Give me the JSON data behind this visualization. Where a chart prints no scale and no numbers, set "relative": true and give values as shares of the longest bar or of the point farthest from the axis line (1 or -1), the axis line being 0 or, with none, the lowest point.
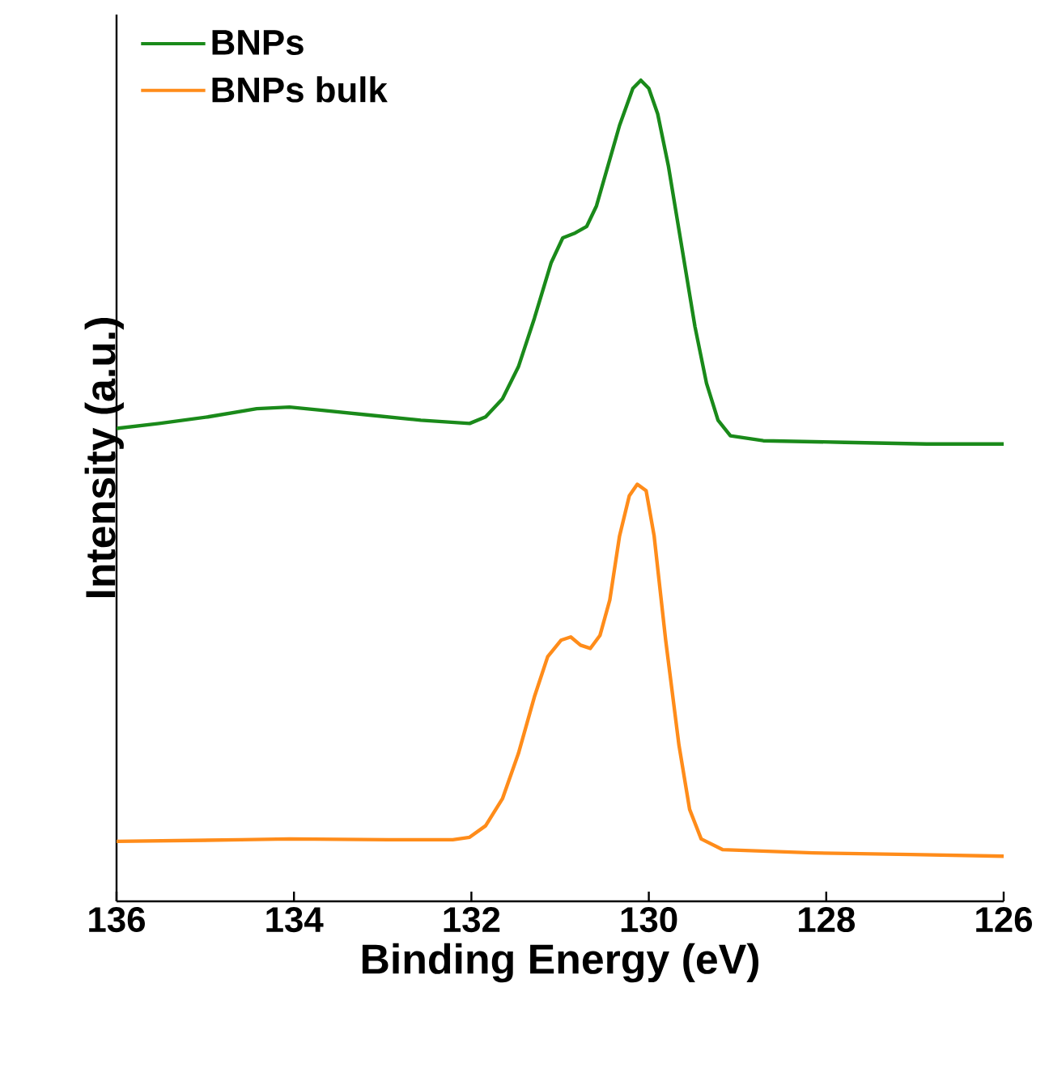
{
  "chart_data": {
    "type": "line",
    "xlabel": "Binding Energy (eV)",
    "ylabel": "Intensity (a.u.)",
    "relative": true,
    "xlim": [
      136,
      126
    ],
    "xticks": [
      136,
      134,
      132,
      130,
      128,
      126
    ],
    "legend": "top left",
    "grid": false,
    "marker": "none",
    "line_style": "solid",
    "series": [
      {
        "name": "BNPs",
        "color": "#1a8a1a",
        "x": [
          136.0,
          135.52,
          134.97,
          134.42,
          134.05,
          133.68,
          133.13,
          132.57,
          132.02,
          131.84,
          131.65,
          131.47,
          131.29,
          131.1,
          130.97,
          130.83,
          130.7,
          130.59,
          130.46,
          130.33,
          130.18,
          130.09,
          130.0,
          129.9,
          129.78,
          129.63,
          129.48,
          129.35,
          129.22,
          129.08,
          128.71,
          127.79,
          126.87,
          126.0
        ],
        "values": [
          0.576,
          0.582,
          0.59,
          0.6,
          0.602,
          0.598,
          0.592,
          0.586,
          0.582,
          0.59,
          0.612,
          0.651,
          0.71,
          0.778,
          0.808,
          0.814,
          0.822,
          0.847,
          0.896,
          0.945,
          0.99,
          1,
          0.99,
          0.959,
          0.896,
          0.798,
          0.7,
          0.631,
          0.586,
          0.567,
          0.561,
          0.559,
          0.557,
          0.557
        ]
      },
      {
        "name": "BNPs bulk",
        "color": "#ff8c1a",
        "x": [
          136.0,
          134.6,
          134.05,
          132.94,
          132.21,
          132.02,
          131.84,
          131.65,
          131.47,
          131.29,
          131.14,
          130.99,
          130.88,
          130.77,
          130.66,
          130.55,
          130.44,
          130.33,
          130.22,
          130.13,
          130.03,
          129.94,
          129.81,
          129.66,
          129.54,
          129.41,
          129.17,
          128.15,
          127.05,
          126.0
        ],
        "values": [
          0.073,
          0.075,
          0.076,
          0.075,
          0.075,
          0.078,
          0.092,
          0.125,
          0.18,
          0.249,
          0.298,
          0.318,
          0.322,
          0.312,
          0.308,
          0.324,
          0.367,
          0.445,
          0.494,
          0.508,
          0.5,
          0.445,
          0.318,
          0.19,
          0.112,
          0.076,
          0.063,
          0.059,
          0.057,
          0.055
        ]
      }
    ]
  }
}
